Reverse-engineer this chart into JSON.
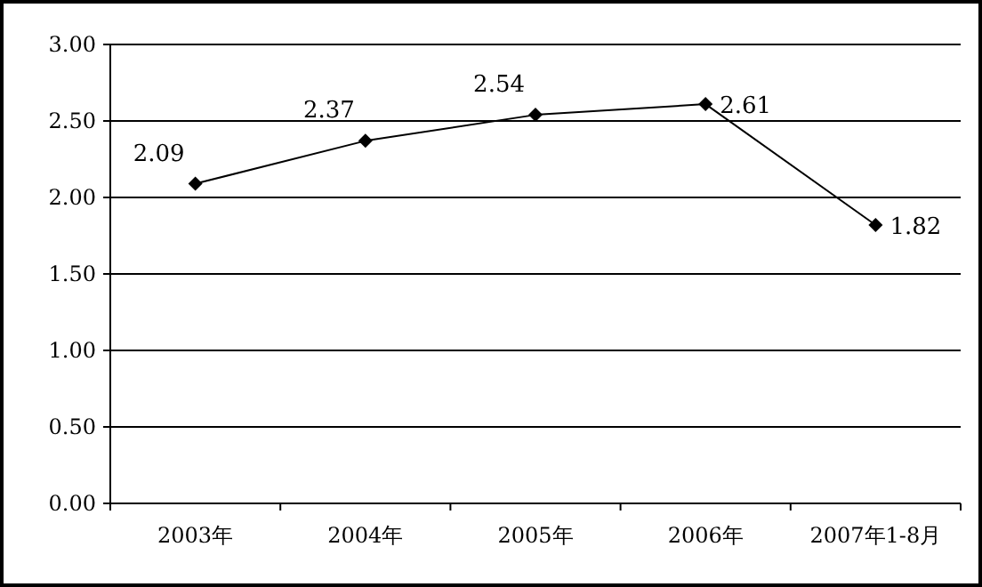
{
  "chart_data": {
    "type": "line",
    "categories": [
      "2003年",
      "2004年",
      "2005年",
      "2006年",
      "2007年1-8月"
    ],
    "series": [
      {
        "color": "#000000",
        "values": [
          2.09,
          2.37,
          2.54,
          2.61,
          1.82
        ]
      }
    ],
    "ylim": [
      0,
      3
    ],
    "yticks": [
      {
        "value": 0,
        "label": "0.00"
      },
      {
        "value": 0.5,
        "label": "0.50"
      },
      {
        "value": 1,
        "label": "1.00"
      },
      {
        "value": 1.5,
        "label": "1.50"
      },
      {
        "value": 2,
        "label": "2.00"
      },
      {
        "value": 2.5,
        "label": "2.50"
      },
      {
        "value": 3,
        "label": "3.00"
      }
    ],
    "grid": "y",
    "marker": "diamond",
    "line_style": "solid",
    "data_labels": true
  }
}
